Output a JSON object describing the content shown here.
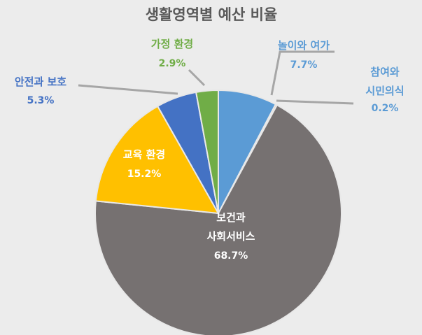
{
  "chart_data": {
    "type": "pie",
    "title": "생활영역별 예산 비율",
    "start_angle_deg": 0,
    "direction": "clockwise",
    "slices": [
      {
        "label_lines": [
          "놀이와 여가"
        ],
        "value": 7.7,
        "value_label": "7.7%",
        "color": "#5b9bd5",
        "label_color": "#5b9bd5"
      },
      {
        "label_lines": [
          "참여와",
          "시민의식"
        ],
        "value": 0.2,
        "value_label": "0.2%",
        "color": "#ed7d31",
        "label_color": "#5b9bd5"
      },
      {
        "label_lines": [
          "보건과",
          "사회서비스"
        ],
        "value": 68.7,
        "value_label": "68.7%",
        "color": "#767171",
        "label_color": "#ffffff"
      },
      {
        "label_lines": [
          "교육 환경"
        ],
        "value": 15.2,
        "value_label": "15.2%",
        "color": "#ffc000",
        "label_color": "#ffffff"
      },
      {
        "label_lines": [
          "안전과 보호"
        ],
        "value": 5.3,
        "value_label": "5.3%",
        "color": "#4472c4",
        "label_color": "#4472c4"
      },
      {
        "label_lines": [
          "가정 환경"
        ],
        "value": 2.9,
        "value_label": "2.9%",
        "color": "#70ad47",
        "label_color": "#70ad47"
      }
    ],
    "legend": "none"
  }
}
